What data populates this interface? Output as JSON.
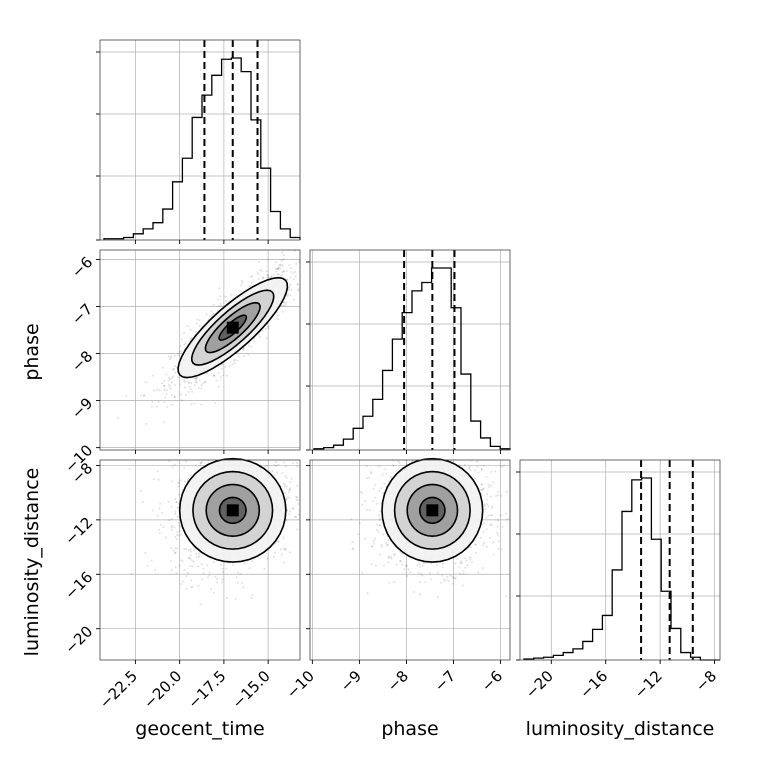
{
  "chart_data": {
    "type": "corner",
    "parameters": [
      "geocent_time",
      "phase",
      "luminosity_distance"
    ],
    "ranges": {
      "geocent_time": [
        -24.5,
        -13.2
      ],
      "phase": [
        -10.05,
        -5.8
      ],
      "luminosity_distance": [
        -22.3,
        -7.6
      ]
    },
    "ticks": {
      "geocent_time": [
        -22.5,
        -20.0,
        -17.5,
        -15.0
      ],
      "phase": [
        -10,
        -9,
        -8,
        -7,
        -6
      ],
      "luminosity_distance": [
        -20,
        -16,
        -12,
        -8
      ]
    },
    "tick_labels": {
      "geocent_time": [
        "−22.5",
        "−20.0",
        "−17.5",
        "−15.0"
      ],
      "phase": [
        "−10",
        "−9",
        "−8",
        "−7",
        "−6"
      ],
      "luminosity_distance": [
        "−20",
        "−16",
        "−12",
        "−8"
      ]
    },
    "quantiles": {
      "geocent_time": [
        -18.6,
        -17.0,
        -15.6
      ],
      "phase": [
        -8.05,
        -7.45,
        -6.98
      ],
      "luminosity_distance": [
        -13.4,
        -11.3,
        -9.6
      ]
    },
    "histograms": {
      "geocent_time": [
        1,
        1,
        2,
        5,
        9,
        14,
        25,
        47,
        66,
        99,
        117,
        133,
        146,
        147,
        136,
        97,
        58,
        23,
        9,
        2
      ],
      "phase": [
        1,
        2,
        4,
        9,
        18,
        28,
        42,
        66,
        92,
        114,
        132,
        139,
        151,
        151,
        118,
        63,
        24,
        10,
        3,
        1
      ],
      "luminosity_distance": [
        1,
        2,
        3,
        5,
        8,
        12,
        20,
        33,
        48,
        97,
        160,
        194,
        196,
        130,
        74,
        34,
        8,
        3,
        0,
        0
      ]
    },
    "grid": true,
    "xlabel_row": [
      "geocent_time",
      "phase",
      "luminosity_distance"
    ],
    "ylabel_col": [
      "phase",
      "luminosity_distance"
    ]
  }
}
